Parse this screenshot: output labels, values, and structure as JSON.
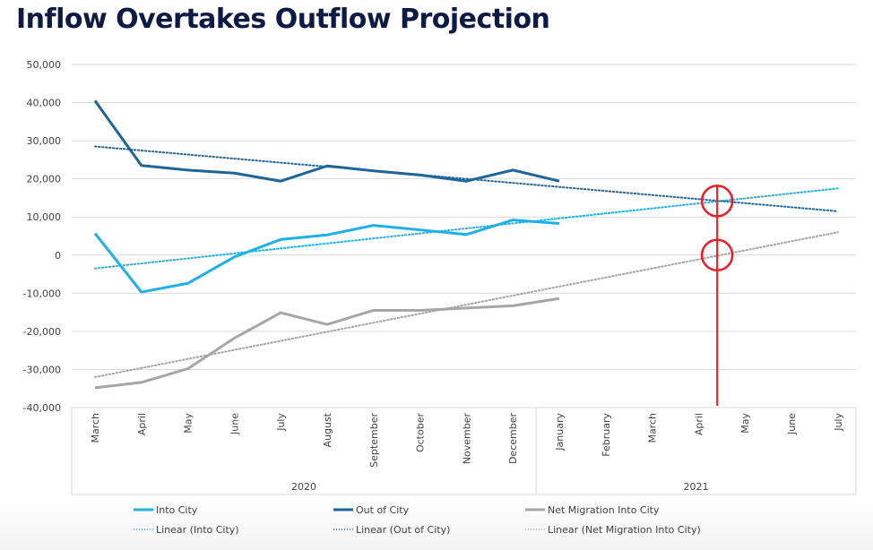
{
  "page": {
    "title": "Inflow Overtakes Outflow Projection"
  },
  "chart_data": {
    "type": "line",
    "title": "Inflow Overtakes Outflow Projection",
    "xlabel": "",
    "ylabel": "",
    "ylim": [
      -40000,
      50000
    ],
    "yticks": [
      50000,
      40000,
      30000,
      20000,
      10000,
      0,
      -10000,
      -20000,
      -30000,
      -40000
    ],
    "ytick_labels": [
      "50,000",
      "40,000",
      "30,000",
      "20,000",
      "10,000",
      "0",
      "-10,000",
      "-20,000",
      "-30,000",
      "-40,000"
    ],
    "grid": true,
    "categories": [
      "March",
      "April",
      "May",
      "June",
      "July",
      "August",
      "September",
      "October",
      "November",
      "December",
      "January",
      "February",
      "March",
      "April",
      "May",
      "June",
      "July"
    ],
    "year_groups": [
      {
        "label": "2020",
        "start": 0,
        "end": 9
      },
      {
        "label": "2021",
        "start": 10,
        "end": 16
      }
    ],
    "series": [
      {
        "name": "Into City",
        "color": "#1fb0e8",
        "style": "solid",
        "values": [
          5700,
          -9700,
          -7400,
          -500,
          4100,
          5300,
          7800,
          6600,
          5400,
          9200,
          8300
        ]
      },
      {
        "name": "Out of City",
        "color": "#1e6599",
        "style": "solid",
        "values": [
          40500,
          23500,
          22300,
          21500,
          19400,
          23400,
          22100,
          21000,
          19400,
          22300,
          19400
        ]
      },
      {
        "name": "Net Migration Into City",
        "color": "#a6a6a6",
        "style": "solid",
        "values": [
          -34800,
          -33400,
          -29800,
          -21800,
          -15100,
          -18200,
          -14500,
          -14500,
          -13900,
          -13300,
          -11400
        ]
      }
    ],
    "trendlines": [
      {
        "name": "Linear (Into City)",
        "color": "#1fb0e8",
        "style": "dotted",
        "start": -3500,
        "end": 17500
      },
      {
        "name": "Linear (Out of City)",
        "color": "#1e6599",
        "style": "dotted",
        "start": 28500,
        "end": 11500
      },
      {
        "name": "Linear (Net Migration Into City)",
        "color": "#a6a6a6",
        "style": "dotted",
        "start": -32000,
        "end": 6000
      }
    ],
    "annotations": {
      "color": "#ee1c25",
      "marker_index": 13.4,
      "circles": [
        14200,
        0
      ],
      "description": "Red vertical line between April and May 2021 with circles at trendline crossing points"
    },
    "legend": {
      "placement": "bottom",
      "entries": [
        "Into City",
        "Out of City",
        "Net Migration Into City",
        "Linear (Into City)",
        "Linear (Out of City)",
        "Linear (Net Migration Into City)"
      ]
    }
  }
}
